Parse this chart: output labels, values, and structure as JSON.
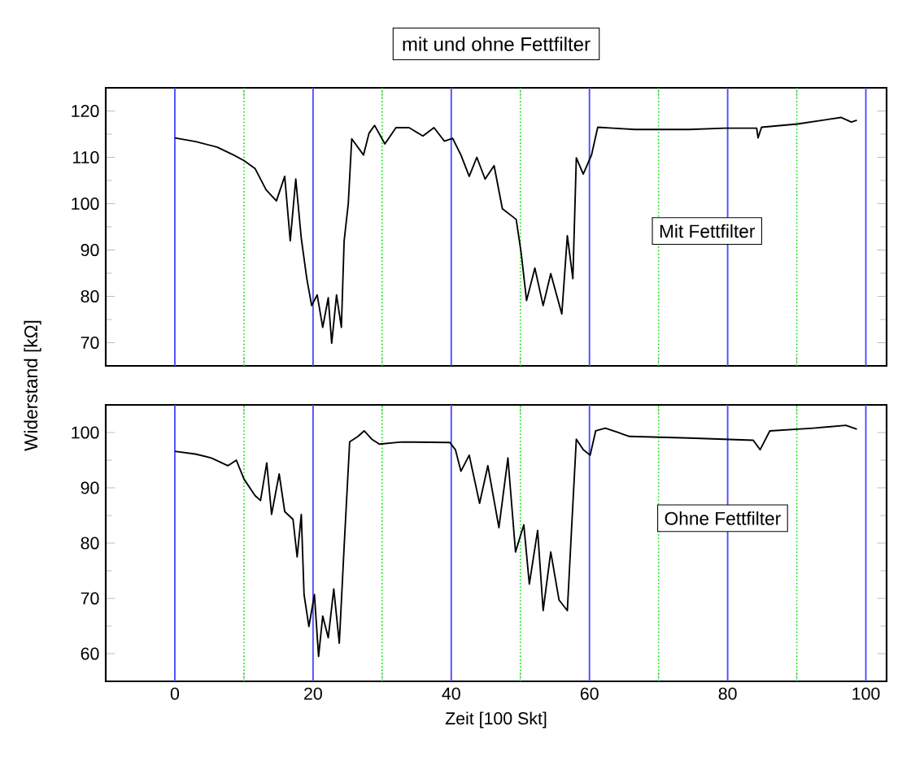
{
  "chart_data": [
    {
      "type": "line",
      "title": "mit und ohne Fettfilter",
      "annotations": [
        "Mit Fettfilter"
      ],
      "xlim": [
        -10,
        103
      ],
      "ylim": [
        65,
        125
      ],
      "xticks": [
        0,
        {
          "value": 10,
          "label": null
        },
        20,
        {
          "value": 30,
          "label": null
        },
        40,
        {
          "value": 50,
          "label": null
        },
        60,
        {
          "value": 70,
          "label": null
        },
        80,
        {
          "value": 90,
          "label": null
        },
        100
      ],
      "yticks": [
        70,
        80,
        90,
        100,
        110,
        120
      ],
      "tick_labels": "y",
      "grid": "x",
      "series": [
        {
          "color": "#000000",
          "x": [
            0,
            3.0,
            6.1,
            8.5,
            10.0,
            11.6,
            13.2,
            14.7,
            15.9,
            16.7,
            17.5,
            18.3,
            19.1,
            19.8,
            20.6,
            21.4,
            22.2,
            22.7,
            23.4,
            24.1,
            24.5,
            25.1,
            25.6,
            27.3,
            28.1,
            28.9,
            30.4,
            32.0,
            33.9,
            35.9,
            37.5,
            39.0,
            40.2,
            41.4,
            42.6,
            43.7,
            44.9,
            46.2,
            47.4,
            49.4,
            50.1,
            50.9,
            52.1,
            53.3,
            54.4,
            56.0,
            56.8,
            57.6,
            58.1,
            59.1,
            60.3,
            61.2,
            63.4,
            66.6,
            74.4,
            79.6,
            84.2,
            84.4,
            84.9,
            90.1,
            96.4,
            97.9,
            98.7
          ],
          "values": [
            114.2,
            113.4,
            112.2,
            110.5,
            109.3,
            107.6,
            103.0,
            100.6,
            105.9,
            92.0,
            105.3,
            92.5,
            83.8,
            78.0,
            80.3,
            73.3,
            79.7,
            69.9,
            80.3,
            73.3,
            92.0,
            100.0,
            114.0,
            110.5,
            115.2,
            116.9,
            112.9,
            116.4,
            116.4,
            114.6,
            116.4,
            113.5,
            114.1,
            110.5,
            105.9,
            110.0,
            105.3,
            108.2,
            98.9,
            96.6,
            89.6,
            79.1,
            86.1,
            78.0,
            84.9,
            76.2,
            93.1,
            83.8,
            109.9,
            106.4,
            110.5,
            116.5,
            116.3,
            116.0,
            116.0,
            116.3,
            116.3,
            114.2,
            116.5,
            117.2,
            118.6,
            117.6,
            118.0
          ]
        }
      ]
    },
    {
      "type": "line",
      "xlabel": "Zeit [100 Skt]",
      "ylabel": "Widerstand [kΩ]",
      "annotations": [
        "Ohne Fettfilter"
      ],
      "xlim": [
        -10,
        103
      ],
      "ylim": [
        55,
        105
      ],
      "xticks": [
        0,
        {
          "value": 10,
          "label": null
        },
        20,
        {
          "value": 30,
          "label": null
        },
        40,
        {
          "value": 50,
          "label": null
        },
        60,
        {
          "value": 70,
          "label": null
        },
        80,
        {
          "value": 90,
          "label": null
        },
        100
      ],
      "yticks": [
        60,
        70,
        80,
        90,
        100
      ],
      "grid": "x",
      "series": [
        {
          "color": "#000000",
          "x": [
            0,
            3.0,
            5.3,
            7.7,
            8.9,
            10.0,
            11.6,
            12.4,
            13.3,
            14.0,
            15.1,
            15.9,
            17.1,
            17.7,
            18.3,
            18.7,
            19.4,
            20.2,
            20.8,
            21.4,
            22.2,
            23.0,
            23.8,
            24.5,
            25.3,
            26.5,
            27.4,
            28.5,
            29.6,
            32.8,
            39.8,
            40.6,
            41.4,
            42.6,
            44.1,
            45.3,
            46.9,
            48.2,
            49.3,
            50.5,
            51.3,
            52.5,
            53.3,
            54.4,
            55.6,
            56.8,
            57.4,
            58.1,
            59.1,
            60.1,
            60.9,
            62.3,
            65.8,
            74.4,
            83.7,
            84.7,
            86.1,
            92.4,
            97.1,
            98.7
          ],
          "values": [
            96.6,
            96.1,
            95.4,
            94.0,
            95.0,
            91.6,
            88.6,
            87.7,
            94.5,
            85.2,
            92.5,
            85.7,
            84.3,
            77.5,
            85.2,
            70.7,
            64.9,
            70.7,
            59.5,
            66.8,
            62.9,
            71.7,
            61.9,
            79.4,
            98.3,
            99.3,
            100.3,
            98.8,
            97.9,
            98.3,
            98.2,
            96.9,
            93.0,
            95.9,
            87.2,
            94.0,
            82.8,
            95.4,
            78.4,
            83.3,
            72.6,
            82.3,
            67.8,
            78.4,
            69.7,
            67.8,
            82.3,
            98.8,
            96.9,
            95.9,
            100.3,
            100.8,
            99.3,
            99.0,
            98.6,
            96.9,
            100.3,
            100.8,
            101.3,
            100.6
          ]
        }
      ]
    }
  ]
}
